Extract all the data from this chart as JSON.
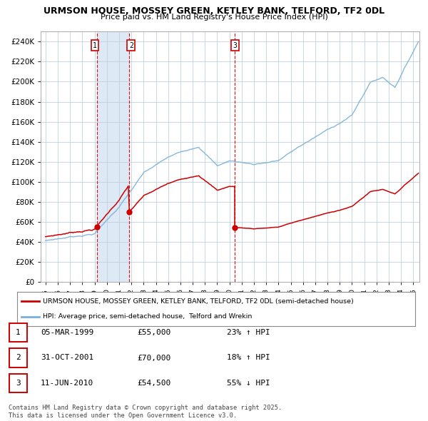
{
  "title1": "URMSON HOUSE, MOSSEY GREEN, KETLEY BANK, TELFORD, TF2 0DL",
  "title2": "Price paid vs. HM Land Registry's House Price Index (HPI)",
  "legend_house": "URMSON HOUSE, MOSSEY GREEN, KETLEY BANK, TELFORD, TF2 0DL (semi-detached house)",
  "legend_hpi": "HPI: Average price, semi-detached house,  Telford and Wrekin",
  "transactions": [
    {
      "num": 1,
      "date": "05-MAR-1999",
      "price": 55000,
      "pct": "23%",
      "dir": "↑"
    },
    {
      "num": 2,
      "date": "31-OCT-2001",
      "price": 70000,
      "pct": "18%",
      "dir": "↑"
    },
    {
      "num": 3,
      "date": "11-JUN-2010",
      "price": 54500,
      "pct": "55%",
      "dir": "↓"
    }
  ],
  "transaction_years": [
    1999.17,
    2001.83,
    2010.44
  ],
  "transaction_prices": [
    55000,
    70000,
    54500
  ],
  "footnote1": "Contains HM Land Registry data © Crown copyright and database right 2025.",
  "footnote2": "This data is licensed under the Open Government Licence v3.0.",
  "hpi_color": "#7ab0d8",
  "house_color": "#cc0000",
  "vline_color": "#cc0000",
  "shade_color": "#ddeaf5",
  "bg_color": "#ffffff",
  "grid_color": "#c0d0e0",
  "ylim": [
    0,
    250000
  ],
  "xlim_start": 1994.6,
  "xlim_end": 2025.5
}
